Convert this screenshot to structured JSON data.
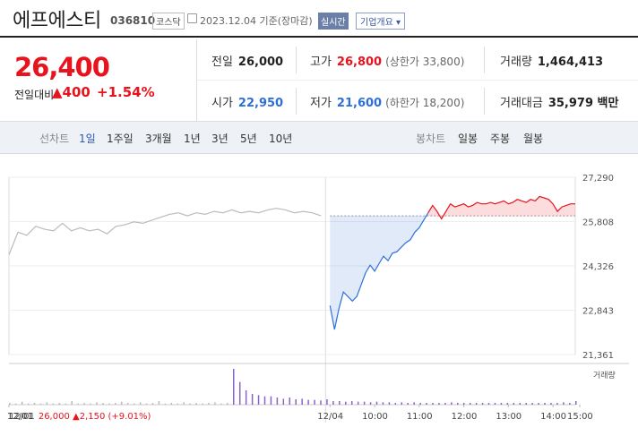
{
  "header": {
    "name": "에프에스티",
    "code": "036810",
    "market": "코스닥",
    "date": "2023.12.04 기준(장마감)",
    "realtime_label": "실시간",
    "company_label": "기업개요"
  },
  "quote": {
    "price": "26,400",
    "change_label": "전일대비",
    "change": "▲400",
    "percent": "+1.54%",
    "prev_close_label": "전일",
    "prev_close": "26,000",
    "high_label": "고가",
    "high": "26,800",
    "upper_limit": "(상한가 33,800)",
    "volume_label": "거래량",
    "volume": "1,464,413",
    "open_label": "시가",
    "open": "22,950",
    "low_label": "저가",
    "low": "21,600",
    "lower_limit": "(하한가 18,200)",
    "amount_label": "거래대금",
    "amount": "35,979 백만"
  },
  "tabs": {
    "line_label": "선차트",
    "line_items": [
      "1일",
      "1주일",
      "3개월",
      "1년",
      "3년",
      "5년",
      "10년"
    ],
    "candle_label": "봉차트",
    "candle_items": [
      "일봉",
      "주봉",
      "월봉"
    ]
  },
  "chart_data": {
    "type": "line",
    "y_ticks": [
      "27,290",
      "25,808",
      "24,326",
      "22,843",
      "21,361"
    ],
    "x_ticks": [
      "12/01",
      "12/04",
      "10:00",
      "11:00",
      "12:00",
      "13:00",
      "14:00",
      "15:00"
    ],
    "volume_label": "거래량",
    "ylim": [
      21361,
      27290
    ],
    "reference_price": 26000,
    "previous_day": [
      [
        0,
        24700
      ],
      [
        2,
        25450
      ],
      [
        4,
        25350
      ],
      [
        6,
        25650
      ],
      [
        8,
        25550
      ],
      [
        10,
        25500
      ],
      [
        12,
        25750
      ],
      [
        14,
        25500
      ],
      [
        16,
        25600
      ],
      [
        18,
        25500
      ],
      [
        20,
        25550
      ],
      [
        22,
        25400
      ],
      [
        24,
        25650
      ],
      [
        26,
        25700
      ],
      [
        28,
        25800
      ],
      [
        30,
        25750
      ],
      [
        32,
        25850
      ],
      [
        34,
        25950
      ],
      [
        36,
        26050
      ],
      [
        38,
        26100
      ],
      [
        40,
        26000
      ],
      [
        42,
        26100
      ],
      [
        44,
        26050
      ],
      [
        46,
        26150
      ],
      [
        48,
        26100
      ],
      [
        50,
        26200
      ],
      [
        52,
        26100
      ],
      [
        54,
        26150
      ],
      [
        56,
        26100
      ],
      [
        58,
        26200
      ],
      [
        60,
        26250
      ],
      [
        62,
        26200
      ],
      [
        64,
        26100
      ],
      [
        66,
        26150
      ],
      [
        68,
        26100
      ],
      [
        70,
        26000
      ]
    ],
    "today": [
      [
        72,
        23000
      ],
      [
        73,
        22200
      ],
      [
        74,
        22900
      ],
      [
        75,
        23450
      ],
      [
        76,
        23300
      ],
      [
        77,
        23150
      ],
      [
        78,
        23300
      ],
      [
        79,
        23700
      ],
      [
        80,
        24100
      ],
      [
        81,
        24350
      ],
      [
        82,
        24150
      ],
      [
        83,
        24400
      ],
      [
        84,
        24650
      ],
      [
        85,
        24500
      ],
      [
        86,
        24750
      ],
      [
        87,
        24800
      ],
      [
        88,
        24950
      ],
      [
        89,
        25100
      ],
      [
        90,
        25200
      ],
      [
        91,
        25450
      ],
      [
        92,
        25600
      ],
      [
        93,
        25850
      ],
      [
        94,
        26100
      ],
      [
        95,
        26350
      ],
      [
        96,
        26150
      ],
      [
        97,
        25900
      ],
      [
        98,
        26150
      ],
      [
        99,
        26400
      ],
      [
        100,
        26300
      ],
      [
        101,
        26350
      ],
      [
        102,
        26400
      ],
      [
        103,
        26300
      ],
      [
        104,
        26350
      ],
      [
        105,
        26450
      ],
      [
        106,
        26400
      ],
      [
        107,
        26400
      ],
      [
        108,
        26450
      ],
      [
        109,
        26400
      ],
      [
        110,
        26450
      ],
      [
        111,
        26500
      ],
      [
        112,
        26400
      ],
      [
        113,
        26450
      ],
      [
        114,
        26550
      ],
      [
        115,
        26500
      ],
      [
        116,
        26450
      ],
      [
        117,
        26550
      ],
      [
        118,
        26500
      ],
      [
        119,
        26650
      ],
      [
        120,
        26600
      ],
      [
        121,
        26550
      ],
      [
        122,
        26400
      ],
      [
        123,
        26150
      ],
      [
        124,
        26300
      ],
      [
        125,
        26350
      ],
      [
        126,
        26400
      ],
      [
        127,
        26400
      ]
    ],
    "volume": [
      3,
      2,
      5,
      2,
      3,
      2,
      4,
      2,
      3,
      2,
      6,
      2,
      3,
      2,
      4,
      3,
      2,
      3,
      5,
      3,
      2,
      4,
      2,
      3,
      6,
      2,
      3,
      2,
      4,
      2,
      3,
      2,
      3,
      4,
      2,
      3,
      60,
      38,
      24,
      18,
      16,
      14,
      14,
      12,
      10,
      12,
      9,
      10,
      8,
      8,
      7,
      9,
      6,
      6,
      5,
      6,
      5,
      5,
      4,
      5,
      4,
      4,
      3,
      4,
      3,
      4,
      3,
      3,
      3,
      3,
      3,
      4,
      3,
      3,
      3,
      3,
      3,
      3,
      3,
      3,
      3,
      3,
      3,
      3,
      3,
      3,
      3,
      3,
      3,
      4,
      3,
      6
    ]
  },
  "footer": {
    "date": "12/01",
    "detail": "26,000 ▲2,150 (+9.01%)"
  },
  "colors": {
    "up": "#e8131d",
    "down": "#2f6fd8",
    "prev": "#bbbbbb",
    "vol": "#8a63c7"
  }
}
